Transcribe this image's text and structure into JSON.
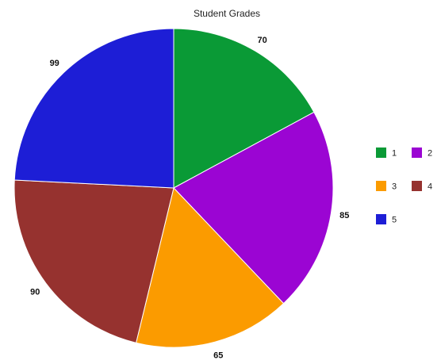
{
  "chart_data": {
    "type": "pie",
    "title": "Student Grades",
    "categories": [
      "1",
      "2",
      "3",
      "4",
      "5"
    ],
    "values": [
      70,
      85,
      65,
      90,
      99
    ],
    "colors": [
      "#0a9a36",
      "#9b05d3",
      "#fb9b00",
      "#96322f",
      "#1d1ed6"
    ],
    "data_labels": [
      "70",
      "85",
      "65",
      "90",
      "99"
    ],
    "start": "12 o'clock",
    "direction": "clockwise",
    "legend_placement": "right",
    "legend_columns": 2
  }
}
